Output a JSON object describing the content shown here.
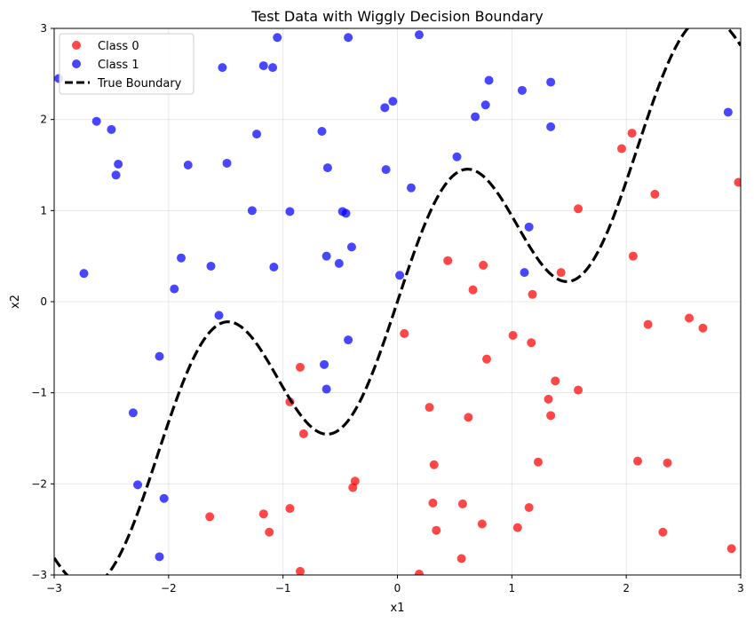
{
  "chart_data": {
    "type": "scatter",
    "title": "Test Data with Wiggly Decision Boundary",
    "xlabel": "x1",
    "ylabel": "x2",
    "xlim": [
      -3,
      3
    ],
    "ylim": [
      -3,
      3
    ],
    "grid": true,
    "legend_position": "top-left",
    "x_ticks": [
      -3,
      -2,
      -1,
      0,
      1,
      2,
      3
    ],
    "y_ticks": [
      -3,
      -2,
      -1,
      0,
      1,
      2,
      3
    ],
    "x_tick_labels": [
      "−3",
      "−2",
      "−1",
      "0",
      "1",
      "2",
      "3"
    ],
    "y_tick_labels": [
      "−3",
      "−2",
      "−1",
      "0",
      "1",
      "2",
      "3"
    ],
    "series": [
      {
        "name": "Class 0",
        "kind": "scatter",
        "color": "#ff0000",
        "points": [
          [
            0.44,
            0.45
          ],
          [
            0.75,
            0.4
          ],
          [
            0.66,
            0.13
          ],
          [
            1.18,
            0.08
          ],
          [
            1.43,
            0.32
          ],
          [
            1.58,
            1.02
          ],
          [
            2.05,
            1.85
          ],
          [
            1.96,
            1.68
          ],
          [
            2.25,
            1.18
          ],
          [
            2.06,
            0.5
          ],
          [
            2.98,
            1.31
          ],
          [
            2.55,
            -0.18
          ],
          [
            2.67,
            -0.29
          ],
          [
            2.19,
            -0.25
          ],
          [
            1.01,
            -0.37
          ],
          [
            1.17,
            -0.45
          ],
          [
            0.06,
            -0.35
          ],
          [
            0.78,
            -0.63
          ],
          [
            1.38,
            -0.87
          ],
          [
            1.32,
            -1.07
          ],
          [
            1.58,
            -0.97
          ],
          [
            1.34,
            -1.25
          ],
          [
            0.28,
            -1.16
          ],
          [
            0.62,
            -1.27
          ],
          [
            -0.85,
            -0.72
          ],
          [
            -0.94,
            -1.1
          ],
          [
            -0.82,
            -1.45
          ],
          [
            0.32,
            -1.79
          ],
          [
            1.23,
            -1.76
          ],
          [
            2.1,
            -1.75
          ],
          [
            2.36,
            -1.77
          ],
          [
            -0.37,
            -1.97
          ],
          [
            -0.39,
            -2.04
          ],
          [
            0.31,
            -2.21
          ],
          [
            0.57,
            -2.22
          ],
          [
            1.15,
            -2.26
          ],
          [
            -0.94,
            -2.27
          ],
          [
            -1.17,
            -2.33
          ],
          [
            -1.64,
            -2.36
          ],
          [
            0.74,
            -2.44
          ],
          [
            0.34,
            -2.51
          ],
          [
            1.05,
            -2.48
          ],
          [
            -1.12,
            -2.53
          ],
          [
            2.32,
            -2.53
          ],
          [
            2.92,
            -2.71
          ],
          [
            0.56,
            -2.82
          ],
          [
            -0.85,
            -2.96
          ],
          [
            0.19,
            -2.99
          ]
        ]
      },
      {
        "name": "Class 1",
        "kind": "scatter",
        "color": "#0000ff",
        "points": [
          [
            -2.96,
            2.45
          ],
          [
            -1.05,
            2.9
          ],
          [
            -0.43,
            2.9
          ],
          [
            0.19,
            2.93
          ],
          [
            -1.53,
            2.57
          ],
          [
            -1.17,
            2.59
          ],
          [
            -1.09,
            2.57
          ],
          [
            -2.63,
            1.98
          ],
          [
            -2.5,
            1.89
          ],
          [
            -1.23,
            1.84
          ],
          [
            -0.66,
            1.87
          ],
          [
            -0.04,
            2.2
          ],
          [
            -0.11,
            2.13
          ],
          [
            0.68,
            2.03
          ],
          [
            0.77,
            2.16
          ],
          [
            0.8,
            2.43
          ],
          [
            1.09,
            2.32
          ],
          [
            1.34,
            2.41
          ],
          [
            1.34,
            1.92
          ],
          [
            2.89,
            2.08
          ],
          [
            -2.44,
            1.51
          ],
          [
            -2.46,
            1.39
          ],
          [
            -1.83,
            1.5
          ],
          [
            -1.49,
            1.52
          ],
          [
            -0.61,
            1.47
          ],
          [
            -0.1,
            1.45
          ],
          [
            0.52,
            1.59
          ],
          [
            0.12,
            1.25
          ],
          [
            -1.27,
            1.0
          ],
          [
            -0.94,
            0.99
          ],
          [
            -0.48,
            0.99
          ],
          [
            -0.45,
            0.97
          ],
          [
            1.15,
            0.82
          ],
          [
            -2.74,
            0.31
          ],
          [
            -1.89,
            0.48
          ],
          [
            -1.63,
            0.39
          ],
          [
            -0.62,
            0.5
          ],
          [
            -0.51,
            0.42
          ],
          [
            -0.4,
            0.6
          ],
          [
            -1.08,
            0.38
          ],
          [
            1.11,
            0.32
          ],
          [
            0.02,
            0.29
          ],
          [
            -1.95,
            0.14
          ],
          [
            -1.56,
            -0.15
          ],
          [
            -0.43,
            -0.42
          ],
          [
            -2.08,
            -0.6
          ],
          [
            -0.64,
            -0.69
          ],
          [
            -0.62,
            -0.96
          ],
          [
            -2.31,
            -1.22
          ],
          [
            -2.27,
            -2.01
          ],
          [
            -2.04,
            -2.16
          ],
          [
            -2.08,
            -2.8
          ]
        ]
      },
      {
        "name": "True Boundary",
        "kind": "line",
        "color": "#000000",
        "style": "dashed",
        "function": "x2 = 0.8*x1 + 1.0*sin(3*x1)"
      }
    ]
  }
}
